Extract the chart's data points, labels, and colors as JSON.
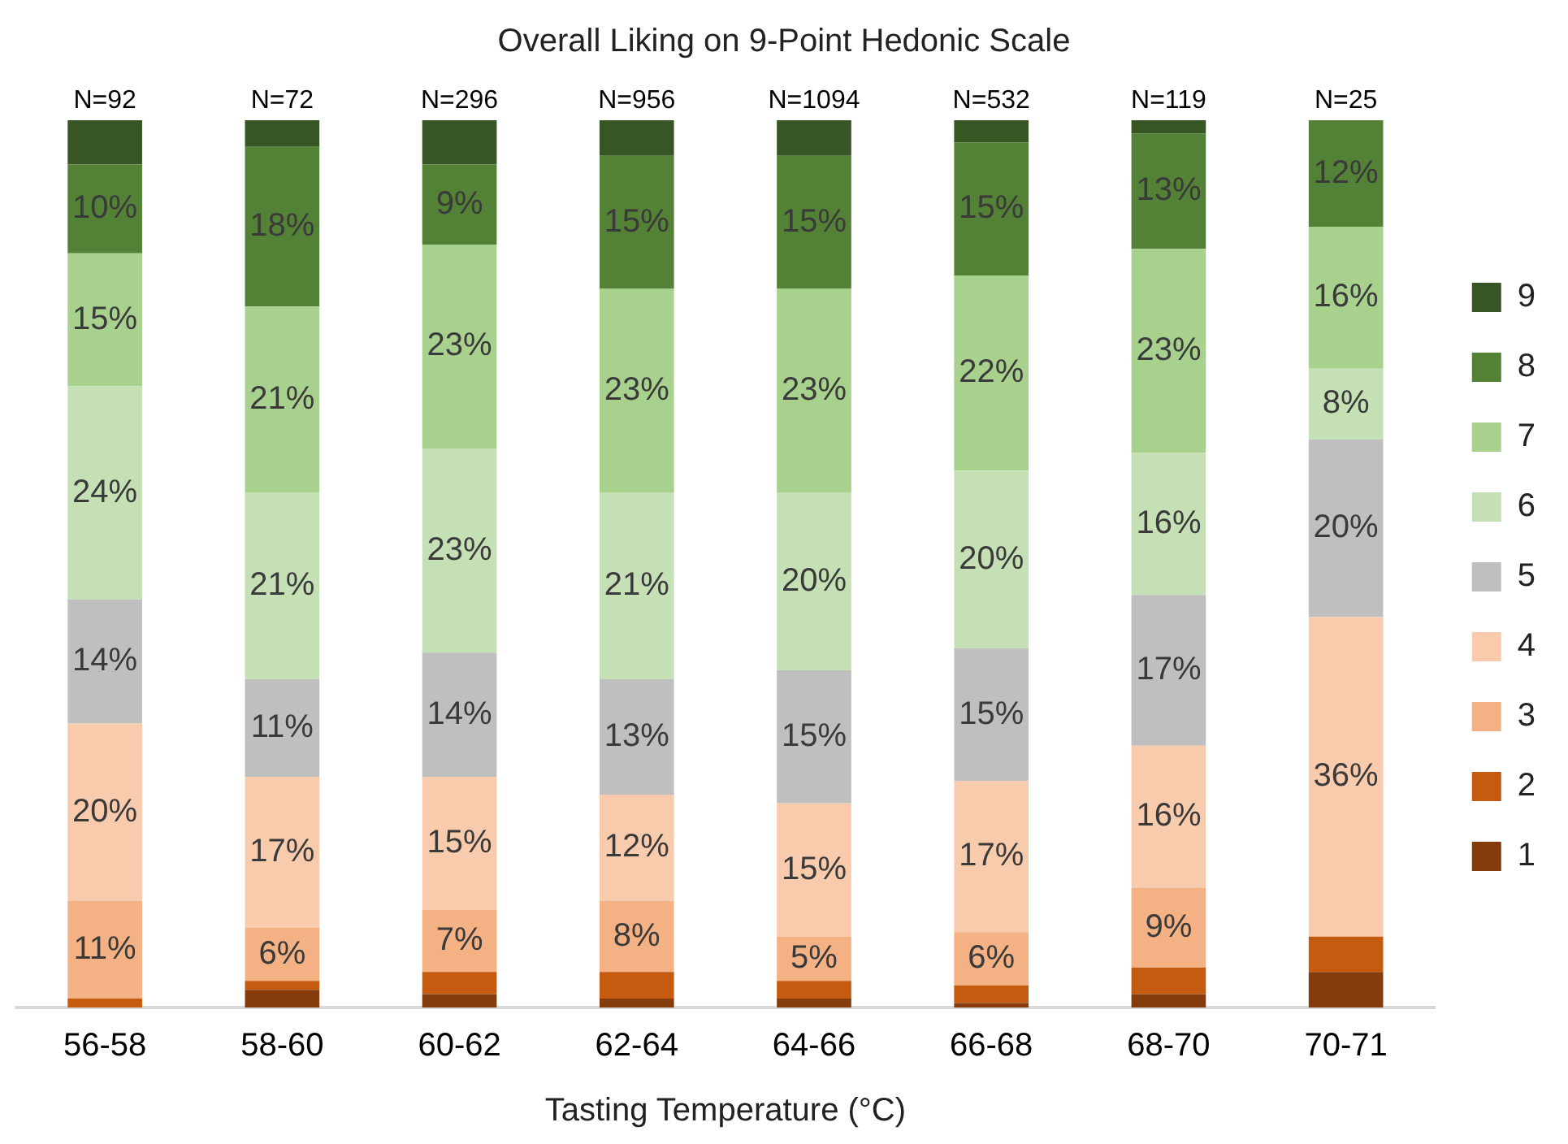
{
  "chart_data": {
    "type": "bar",
    "stacked": true,
    "title": "Overall Liking on 9-Point Hedonic Scale",
    "xlabel": "Tasting Temperature (°C)",
    "categories": [
      "56-58",
      "58-60",
      "60-62",
      "62-64",
      "64-66",
      "66-68",
      "68-70",
      "70-71"
    ],
    "ylim": [
      0,
      100
    ],
    "grid": false,
    "legend": "right",
    "tick_labels": "x",
    "series": [
      {
        "name": "1",
        "color": "#843c0c",
        "values": [
          0,
          2,
          1.5,
          1,
          1,
          0.5,
          1.5,
          4
        ],
        "value_labels": [
          null,
          null,
          null,
          null,
          null,
          null,
          null,
          null
        ]
      },
      {
        "name": "2",
        "color": "#c55a11",
        "values": [
          1,
          1,
          2.5,
          3,
          2,
          2,
          3,
          4
        ],
        "value_labels": [
          null,
          null,
          null,
          null,
          null,
          null,
          null,
          null
        ]
      },
      {
        "name": "3",
        "color": "#f4b183",
        "values": [
          11,
          6,
          7,
          8,
          5,
          6,
          9,
          0
        ],
        "value_labels": [
          "11%",
          "6%",
          "7%",
          "8%",
          "5%",
          "6%",
          "9%",
          null
        ]
      },
      {
        "name": "4",
        "color": "#f8cbad",
        "values": [
          20,
          17,
          15,
          12,
          15,
          17,
          16,
          36
        ],
        "value_labels": [
          "20%",
          "17%",
          "15%",
          "12%",
          "15%",
          "17%",
          "16%",
          "36%"
        ]
      },
      {
        "name": "5",
        "color": "#bfbfbf",
        "values": [
          14,
          11,
          14,
          13,
          15,
          15,
          17,
          20
        ],
        "value_labels": [
          "14%",
          "11%",
          "14%",
          "13%",
          "15%",
          "15%",
          "17%",
          "20%"
        ]
      },
      {
        "name": "6",
        "color": "#c5e0b4",
        "values": [
          24,
          21,
          23,
          21,
          20,
          20,
          16,
          8
        ],
        "value_labels": [
          "24%",
          "21%",
          "23%",
          "21%",
          "20%",
          "20%",
          "16%",
          "8%"
        ]
      },
      {
        "name": "7",
        "color": "#a9d18e",
        "values": [
          15,
          21,
          23,
          23,
          23,
          22,
          23,
          16
        ],
        "value_labels": [
          "15%",
          "21%",
          "23%",
          "23%",
          "23%",
          "22%",
          "23%",
          "16%"
        ]
      },
      {
        "name": "8",
        "color": "#538135",
        "values": [
          10,
          18,
          9,
          15,
          15,
          15,
          13,
          12
        ],
        "value_labels": [
          "10%",
          "18%",
          "9%",
          "15%",
          "15%",
          "15%",
          "13%",
          "12%"
        ]
      },
      {
        "name": "9",
        "color": "#375623",
        "values": [
          5,
          3,
          5,
          4,
          4,
          2.5,
          1.5,
          0
        ],
        "value_labels": [
          null,
          null,
          null,
          null,
          null,
          null,
          null,
          null
        ]
      }
    ],
    "annotations": [
      "N=92",
      "N=72",
      "N=296",
      "N=956",
      "N=1094",
      "N=532",
      "N=119",
      "N=25"
    ]
  }
}
